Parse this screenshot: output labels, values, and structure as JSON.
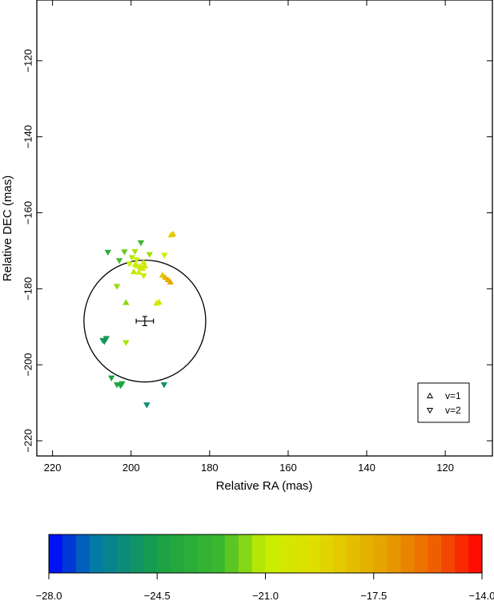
{
  "chart_data": [
    {
      "type": "scatter",
      "title": "",
      "xlabel": "Relative RA (mas)",
      "ylabel": "Relative DEC (mas)",
      "xlim": [
        224,
        108
      ],
      "ylim": [
        -224,
        -104
      ],
      "x_ticks": [
        220,
        200,
        180,
        160,
        140,
        120
      ],
      "x_tick_labels": [
        "220",
        "200",
        "180",
        "160",
        "140",
        "120"
      ],
      "y_ticks": [
        -120,
        -140,
        -160,
        -180,
        -200,
        -220
      ],
      "y_tick_labels": [
        "−120",
        "−140",
        "−160",
        "−180",
        "−200",
        "−220"
      ],
      "grid": false,
      "legend_position": "bottom-right",
      "color_variable_range": [
        -28.0,
        -14.0
      ],
      "series": [
        {
          "name": "v=1",
          "marker": "triangle-up",
          "points": [
            {
              "x": 189.8,
              "y": -165.8,
              "c": -18.8
            },
            {
              "x": 189.3,
              "y": -165.6,
              "c": -18.6
            },
            {
              "x": 199.0,
              "y": -173.6,
              "c": -21.0
            },
            {
              "x": 198.4,
              "y": -173.9,
              "c": -20.8
            },
            {
              "x": 197.7,
              "y": -174.2,
              "c": -20.6
            },
            {
              "x": 197.1,
              "y": -174.6,
              "c": -20.5
            },
            {
              "x": 196.5,
              "y": -174.0,
              "c": -20.2
            },
            {
              "x": 199.3,
              "y": -175.5,
              "c": -21.1
            },
            {
              "x": 198.0,
              "y": -175.6,
              "c": -20.7
            },
            {
              "x": 196.8,
              "y": -173.0,
              "c": -20.3
            },
            {
              "x": 192.0,
              "y": -176.4,
              "c": -18.4
            },
            {
              "x": 191.3,
              "y": -177.0,
              "c": -17.9
            },
            {
              "x": 190.6,
              "y": -177.6,
              "c": -17.6
            },
            {
              "x": 190.0,
              "y": -178.2,
              "c": -17.3
            },
            {
              "x": 192.9,
              "y": -183.5,
              "c": -20.2
            },
            {
              "x": 193.5,
              "y": -183.8,
              "c": -20.4
            },
            {
              "x": 201.3,
              "y": -183.6,
              "c": -21.6
            }
          ]
        },
        {
          "name": "v=2",
          "marker": "triangle-down",
          "points": [
            {
              "x": 197.5,
              "y": -167.9,
              "c": -22.4
            },
            {
              "x": 205.9,
              "y": -170.4,
              "c": -23.4
            },
            {
              "x": 201.7,
              "y": -170.3,
              "c": -22.0
            },
            {
              "x": 199.0,
              "y": -170.2,
              "c": -21.3
            },
            {
              "x": 195.3,
              "y": -171.0,
              "c": -21.4
            },
            {
              "x": 191.5,
              "y": -171.2,
              "c": -21.0
            },
            {
              "x": 203.0,
              "y": -172.6,
              "c": -22.3
            },
            {
              "x": 199.8,
              "y": -171.8,
              "c": -21.2
            },
            {
              "x": 198.6,
              "y": -172.4,
              "c": -20.9
            },
            {
              "x": 196.8,
              "y": -176.6,
              "c": -20.4
            },
            {
              "x": 200.4,
              "y": -173.5,
              "c": -21.0
            },
            {
              "x": 203.6,
              "y": -179.4,
              "c": -21.5
            },
            {
              "x": 201.3,
              "y": -194.2,
              "c": -21.3
            },
            {
              "x": 206.3,
              "y": -193.1,
              "c": -24.8
            },
            {
              "x": 207.2,
              "y": -193.6,
              "c": -24.9
            },
            {
              "x": 206.8,
              "y": -193.9,
              "c": -25.0
            },
            {
              "x": 205.0,
              "y": -203.5,
              "c": -24.4
            },
            {
              "x": 203.6,
              "y": -205.3,
              "c": -24.2
            },
            {
              "x": 202.7,
              "y": -205.5,
              "c": -24.3
            },
            {
              "x": 202.3,
              "y": -205.0,
              "c": -24.1
            },
            {
              "x": 191.6,
              "y": -205.3,
              "c": -25.3
            },
            {
              "x": 196.0,
              "y": -210.6,
              "c": -25.5
            }
          ]
        }
      ],
      "ellipse": {
        "cx": 196.5,
        "cy": -188.5,
        "r": 15.5
      },
      "center_point": {
        "x": 196.5,
        "y": -188.5,
        "x_err": 2.2,
        "y_err": 1.2
      },
      "legend": [
        {
          "label": "v=1",
          "marker": "triangle-up"
        },
        {
          "label": "v=2",
          "marker": "triangle-down"
        }
      ]
    },
    {
      "type": "heatmap",
      "role": "colorbar",
      "range": [
        -28.0,
        -14.0
      ],
      "n_steps": 32,
      "ticks": [
        -28.0,
        -24.5,
        -21.0,
        -17.5,
        -14.0
      ],
      "tick_labels": [
        "−28.0",
        "−24.5",
        "−21.0",
        "−17.5",
        "−14.0"
      ]
    }
  ]
}
